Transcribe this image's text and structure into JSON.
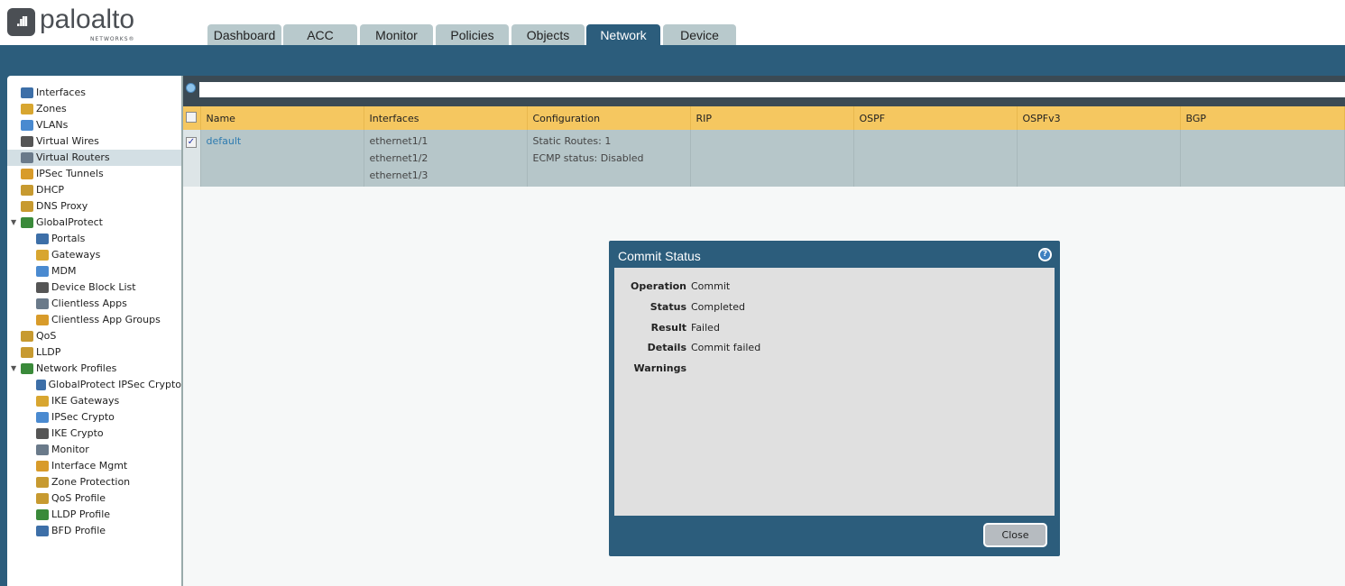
{
  "logo": {
    "text": "paloalto",
    "sub": "NETWORKS®"
  },
  "tabs": [
    {
      "label": "Dashboard"
    },
    {
      "label": "ACC"
    },
    {
      "label": "Monitor"
    },
    {
      "label": "Policies"
    },
    {
      "label": "Objects"
    },
    {
      "label": "Network",
      "active": true
    },
    {
      "label": "Device"
    }
  ],
  "sidebar": {
    "items": [
      {
        "label": "Interfaces",
        "level": 0,
        "icon": "interfaces-icon"
      },
      {
        "label": "Zones",
        "level": 0,
        "icon": "zones-icon"
      },
      {
        "label": "VLANs",
        "level": 0,
        "icon": "vlans-icon"
      },
      {
        "label": "Virtual Wires",
        "level": 0,
        "icon": "virtual-wires-icon"
      },
      {
        "label": "Virtual Routers",
        "level": 0,
        "icon": "router-icon",
        "selected": true
      },
      {
        "label": "IPSec Tunnels",
        "level": 0,
        "icon": "tunnel-icon"
      },
      {
        "label": "DHCP",
        "level": 0,
        "icon": "dhcp-icon"
      },
      {
        "label": "DNS Proxy",
        "level": 0,
        "icon": "dns-icon"
      },
      {
        "label": "GlobalProtect",
        "level": 0,
        "icon": "globe-icon",
        "expanded": true
      },
      {
        "label": "Portals",
        "level": 1,
        "icon": "globe-icon"
      },
      {
        "label": "Gateways",
        "level": 1,
        "icon": "globe-icon"
      },
      {
        "label": "MDM",
        "level": 1,
        "icon": "mobile-icon"
      },
      {
        "label": "Device Block List",
        "level": 1,
        "icon": "block-icon"
      },
      {
        "label": "Clientless Apps",
        "level": 1,
        "icon": "apps-icon"
      },
      {
        "label": "Clientless App Groups",
        "level": 1,
        "icon": "apps-icon"
      },
      {
        "label": "QoS",
        "level": 0,
        "icon": "qos-icon"
      },
      {
        "label": "LLDP",
        "level": 0,
        "icon": "lldp-icon"
      },
      {
        "label": "Network Profiles",
        "level": 0,
        "icon": "profiles-icon",
        "expanded": true
      },
      {
        "label": "GlobalProtect IPSec Crypto",
        "level": 1,
        "icon": "lock-icon"
      },
      {
        "label": "IKE Gateways",
        "level": 1,
        "icon": "gateway-icon"
      },
      {
        "label": "IPSec Crypto",
        "level": 1,
        "icon": "lock-icon"
      },
      {
        "label": "IKE Crypto",
        "level": 1,
        "icon": "lock-icon"
      },
      {
        "label": "Monitor",
        "level": 1,
        "icon": "monitor-icon"
      },
      {
        "label": "Interface Mgmt",
        "level": 1,
        "icon": "mgmt-icon"
      },
      {
        "label": "Zone Protection",
        "level": 1,
        "icon": "zone-protection-icon"
      },
      {
        "label": "QoS Profile",
        "level": 1,
        "icon": "qos-icon"
      },
      {
        "label": "LLDP Profile",
        "level": 1,
        "icon": "lldp-icon"
      },
      {
        "label": "BFD Profile",
        "level": 1,
        "icon": "bfd-icon"
      }
    ]
  },
  "search": {
    "value": ""
  },
  "table": {
    "columns": [
      "Name",
      "Interfaces",
      "Configuration",
      "RIP",
      "OSPF",
      "OSPFv3",
      "BGP"
    ],
    "rows": [
      {
        "checked": true,
        "name": "default",
        "interfaces": [
          "ethernet1/1",
          "ethernet1/2",
          "ethernet1/3"
        ],
        "configuration": [
          "Static Routes: 1",
          "ECMP status: Disabled"
        ],
        "rip": "",
        "ospf": "",
        "ospfv3": "",
        "bgp": ""
      }
    ]
  },
  "dialog": {
    "title": "Commit Status",
    "fields": [
      {
        "key": "Operation",
        "value": "Commit"
      },
      {
        "key": "Status",
        "value": "Completed"
      },
      {
        "key": "Result",
        "value": "Failed"
      },
      {
        "key": "Details",
        "value": "Commit failed"
      },
      {
        "key": "Warnings",
        "value": ""
      }
    ],
    "close_label": "Close"
  },
  "colors": {
    "brand": "#2c5d7c",
    "header_row": "#f5c760",
    "selected_row": "#b6c6c9",
    "link": "#2e7bb0"
  }
}
